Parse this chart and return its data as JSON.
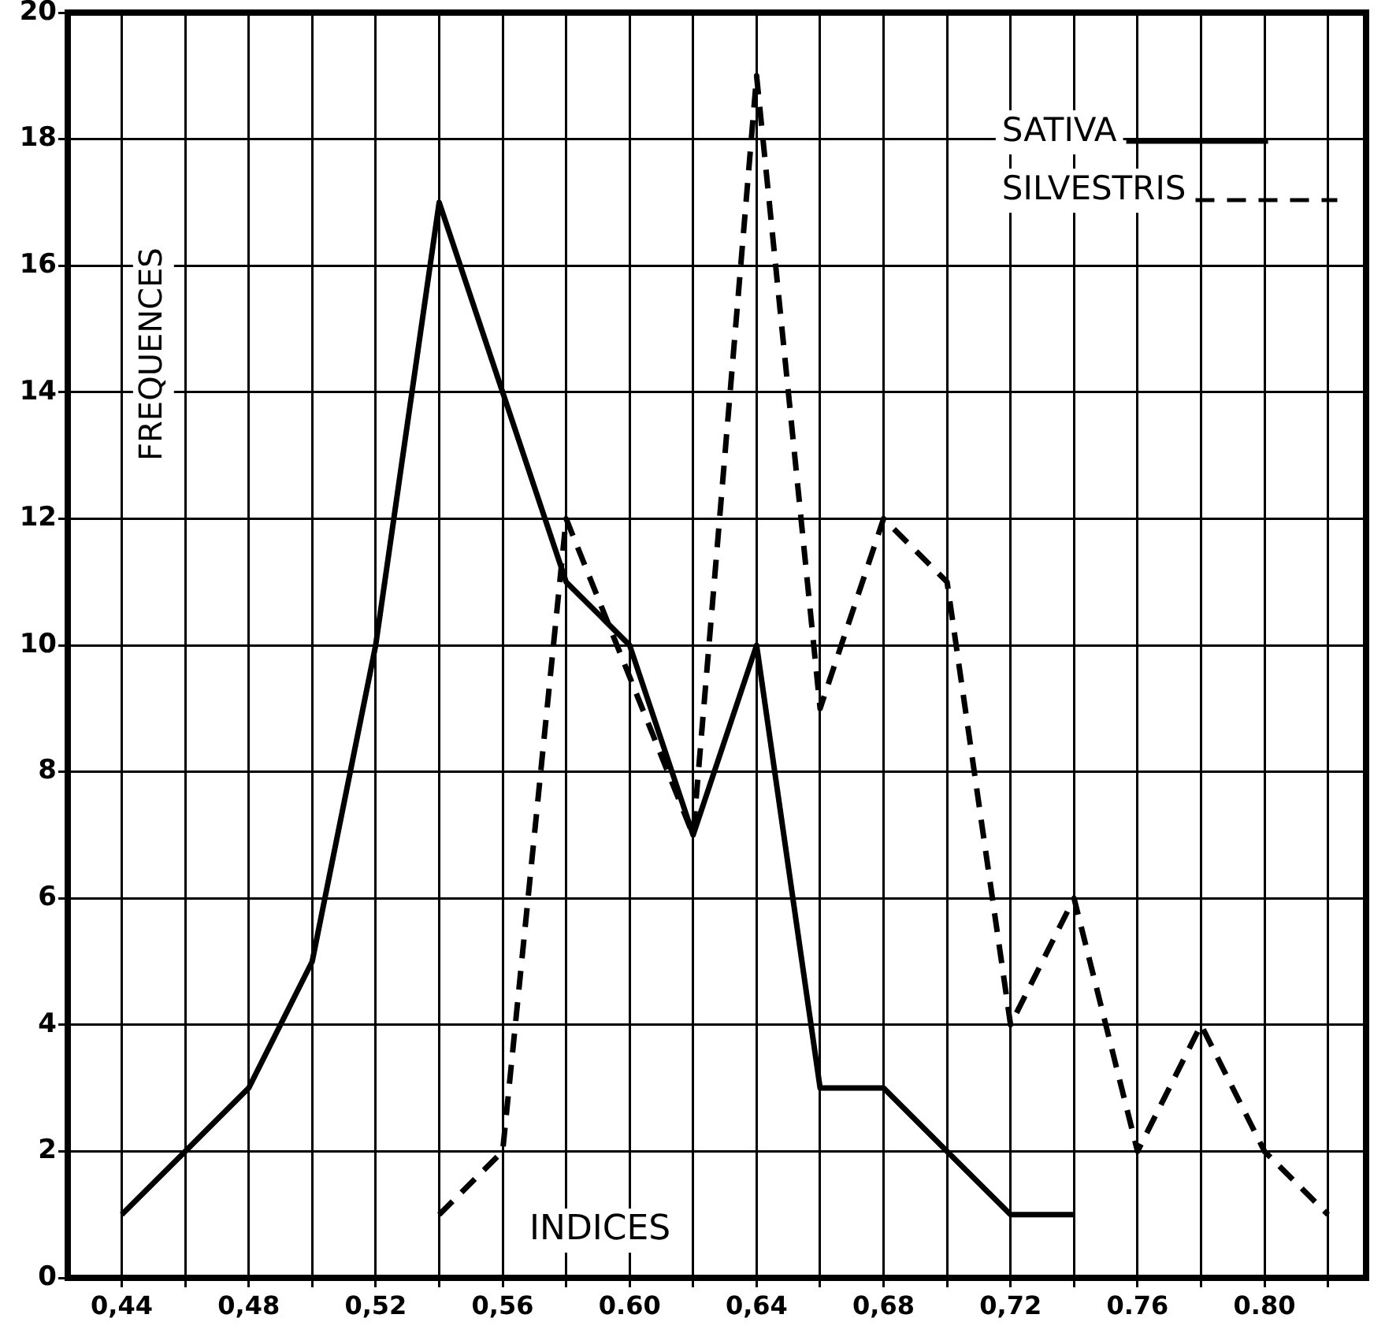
{
  "chart_data": {
    "type": "line",
    "xlabel": "INDICES",
    "ylabel": "FREQUENCES",
    "xlim": [
      0.423,
      0.832
    ],
    "ylim": [
      0,
      20
    ],
    "xticks": [
      {
        "value": 0.44,
        "label": "0,44"
      },
      {
        "value": 0.46,
        "label": null
      },
      {
        "value": 0.48,
        "label": "0,48"
      },
      {
        "value": 0.5,
        "label": null
      },
      {
        "value": 0.52,
        "label": "0,52"
      },
      {
        "value": 0.54,
        "label": null
      },
      {
        "value": 0.56,
        "label": "0,56"
      },
      {
        "value": 0.58,
        "label": null
      },
      {
        "value": 0.6,
        "label": "0.60"
      },
      {
        "value": 0.62,
        "label": null
      },
      {
        "value": 0.64,
        "label": "0,64"
      },
      {
        "value": 0.66,
        "label": null
      },
      {
        "value": 0.68,
        "label": "0,68"
      },
      {
        "value": 0.7,
        "label": null
      },
      {
        "value": 0.72,
        "label": "0,72"
      },
      {
        "value": 0.74,
        "label": null
      },
      {
        "value": 0.76,
        "label": "0.76"
      },
      {
        "value": 0.78,
        "label": null
      },
      {
        "value": 0.8,
        "label": "0.80"
      },
      {
        "value": 0.82,
        "label": null
      }
    ],
    "yticks": [
      0,
      2,
      4,
      6,
      8,
      10,
      12,
      14,
      16,
      18,
      20
    ],
    "grid": true,
    "legend": "top right",
    "marker": "none",
    "series": [
      {
        "name": "SATIVA",
        "color": "#000000",
        "line_style": "solid",
        "x": [
          0.44,
          0.46,
          0.48,
          0.5,
          0.52,
          0.54,
          0.56,
          0.58,
          0.6,
          0.62,
          0.64,
          0.66,
          0.68,
          0.7,
          0.72,
          0.74
        ],
        "values": [
          1,
          2,
          3,
          5,
          10,
          17,
          14,
          11,
          10,
          7,
          10,
          3,
          3,
          2,
          1,
          1
        ]
      },
      {
        "name": "SILVESTRIS",
        "color": "#000000",
        "line_style": "dashed",
        "x": [
          0.54,
          0.56,
          0.58,
          0.62,
          0.64,
          0.66,
          0.68,
          0.7,
          0.72,
          0.74,
          0.76,
          0.78,
          0.8,
          0.82
        ],
        "values": [
          1,
          2,
          12,
          7,
          19,
          9,
          12,
          11,
          4,
          6,
          2,
          4,
          2,
          1
        ]
      }
    ]
  }
}
